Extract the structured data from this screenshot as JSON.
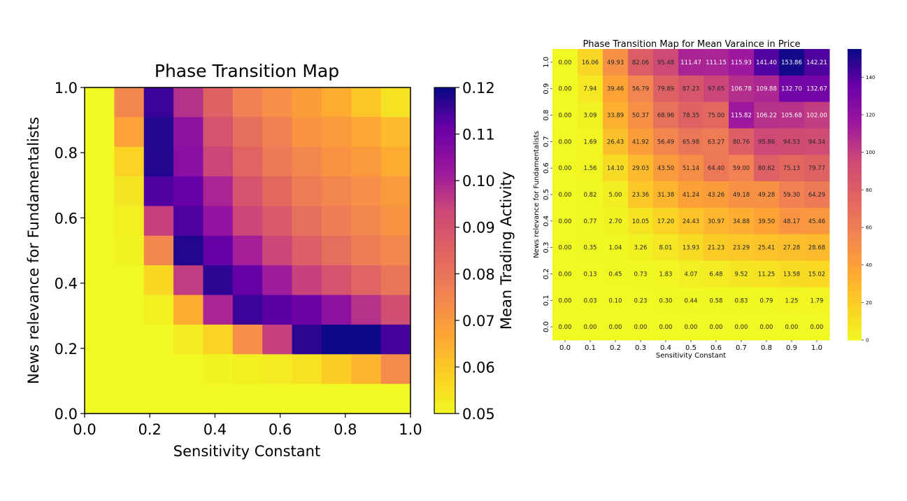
{
  "chart_data": [
    {
      "type": "heatmap",
      "title": "Phase Transition Map",
      "xlabel": "Sensitivity Constant",
      "ylabel": "News relevance for Fundamentalists",
      "colorbar_label": "Mean Trading Activity",
      "colormap": "plasma_r",
      "xlim": [
        0.0,
        1.0
      ],
      "ylim": [
        0.0,
        1.0
      ],
      "x_tick_labels": [
        "0.0",
        "0.2",
        "0.4",
        "0.6",
        "0.8",
        "1.0"
      ],
      "y_tick_labels": [
        "0.0",
        "0.2",
        "0.4",
        "0.6",
        "0.8",
        "1.0"
      ],
      "colorbar_ticks": [
        "0.05",
        "0.06",
        "0.07",
        "0.08",
        "0.09",
        "0.10",
        "0.11",
        "0.12"
      ],
      "colorbar_range": [
        0.05,
        0.12
      ],
      "rows_top_to_bottom": [
        [
          0.05,
          0.075,
          0.116,
          0.098,
          0.086,
          0.077,
          0.073,
          0.069,
          0.066,
          0.061,
          0.055
        ],
        [
          0.05,
          0.068,
          0.118,
          0.105,
          0.09,
          0.082,
          0.077,
          0.072,
          0.07,
          0.067,
          0.063
        ],
        [
          0.05,
          0.058,
          0.118,
          0.106,
          0.094,
          0.085,
          0.079,
          0.075,
          0.072,
          0.07,
          0.066
        ],
        [
          0.05,
          0.054,
          0.114,
          0.112,
          0.1,
          0.09,
          0.084,
          0.078,
          0.075,
          0.073,
          0.07
        ],
        [
          0.05,
          0.052,
          0.095,
          0.114,
          0.104,
          0.094,
          0.088,
          0.082,
          0.078,
          0.075,
          0.072
        ],
        [
          0.05,
          0.051,
          0.075,
          0.118,
          0.112,
          0.101,
          0.094,
          0.087,
          0.082,
          0.078,
          0.075
        ],
        [
          0.05,
          0.05,
          0.057,
          0.096,
          0.117,
          0.112,
          0.102,
          0.095,
          0.09,
          0.085,
          0.08
        ],
        [
          0.05,
          0.05,
          0.052,
          0.066,
          0.1,
          0.116,
          0.113,
          0.111,
          0.105,
          0.098,
          0.092
        ],
        [
          0.05,
          0.05,
          0.05,
          0.053,
          0.058,
          0.073,
          0.095,
          0.117,
          0.121,
          0.121,
          0.115
        ],
        [
          0.05,
          0.05,
          0.05,
          0.05,
          0.051,
          0.052,
          0.053,
          0.055,
          0.059,
          0.064,
          0.074
        ],
        [
          0.05,
          0.05,
          0.05,
          0.05,
          0.05,
          0.05,
          0.05,
          0.05,
          0.05,
          0.05,
          0.05
        ]
      ]
    },
    {
      "type": "heatmap",
      "title": "Phase Transition Map for Mean Varaince in Price",
      "xlabel": "Sensitivity Constant",
      "ylabel": "News relevance for Fundamentalists",
      "colormap": "plasma_r",
      "x_tick_labels": [
        "0.0",
        "0.1",
        "0.2",
        "0.3",
        "0.4",
        "0.5",
        "0.6",
        "0.7",
        "0.8",
        "0.9",
        "1.0"
      ],
      "y_tick_labels_top_to_bottom": [
        "1.0",
        "0.9",
        "0.8",
        "0.7",
        "0.6",
        "0.5",
        "0.4",
        "0.3",
        "0.2",
        "0.1",
        "0.0"
      ],
      "colorbar_ticks": [
        "0",
        "20",
        "40",
        "60",
        "80",
        "100",
        "120",
        "140"
      ],
      "colorbar_range": [
        0,
        155
      ],
      "rows_top_to_bottom": [
        [
          "0.00",
          "16.06",
          "49.93",
          "82.06",
          "95.48",
          "111.47",
          "111.15",
          "115.93",
          "141.40",
          "153.86",
          "142.21"
        ],
        [
          "0.00",
          "7.94",
          "39.46",
          "56.79",
          "79.89",
          "87.23",
          "97.65",
          "106.78",
          "109.88",
          "132.70",
          "132.67"
        ],
        [
          "0.00",
          "3.09",
          "33.89",
          "50.37",
          "68.96",
          "78.35",
          "75.00",
          "115.82",
          "106.22",
          "105.68",
          "102.00"
        ],
        [
          "0.00",
          "1.69",
          "26.43",
          "41.92",
          "56.49",
          "65.98",
          "63.27",
          "80.76",
          "95.86",
          "94.53",
          "94.34"
        ],
        [
          "0.00",
          "1.56",
          "14.10",
          "29.03",
          "43.50",
          "51.14",
          "64.40",
          "59.00",
          "80.62",
          "75.13",
          "79.77"
        ],
        [
          "0.00",
          "0.82",
          "5.00",
          "23.36",
          "31.38",
          "41.24",
          "43.26",
          "49.18",
          "49.28",
          "59.30",
          "64.29"
        ],
        [
          "0.00",
          "0.77",
          "2.70",
          "10.05",
          "17.20",
          "24.43",
          "30.97",
          "34.88",
          "39.50",
          "48.17",
          "45.46"
        ],
        [
          "0.00",
          "0.35",
          "1.04",
          "3.26",
          "8.01",
          "13.93",
          "21.23",
          "23.29",
          "25.41",
          "27.28",
          "28.68"
        ],
        [
          "0.00",
          "0.13",
          "0.45",
          "0.73",
          "1.83",
          "4.07",
          "6.48",
          "9.52",
          "11.25",
          "13.58",
          "15.02"
        ],
        [
          "0.00",
          "0.03",
          "0.10",
          "0.23",
          "0.30",
          "0.44",
          "0.58",
          "0.83",
          "0.79",
          "1.25",
          "1.79"
        ],
        [
          "0.00",
          "0.00",
          "0.00",
          "0.00",
          "0.00",
          "0.00",
          "0.00",
          "0.00",
          "0.00",
          "0.00",
          "0.00"
        ]
      ]
    }
  ]
}
